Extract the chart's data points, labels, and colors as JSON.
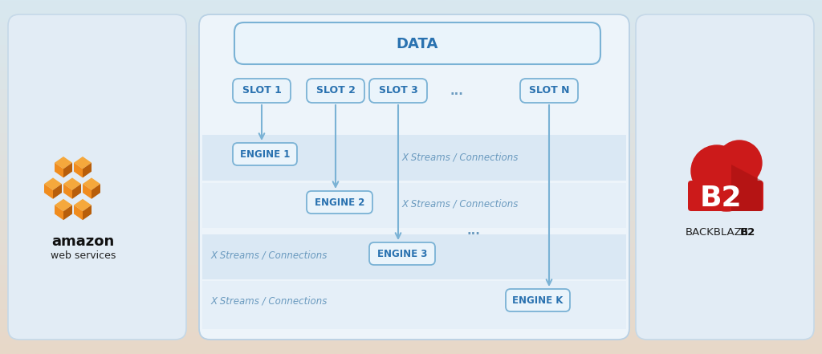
{
  "bg_gradient_top": "#d8e8f0",
  "bg_gradient_bottom": "#e8d8c8",
  "left_panel_color": "#e2ecf5",
  "left_panel_border": "#c5d8e8",
  "right_panel_color": "#e2ecf5",
  "right_panel_border": "#c5d8e8",
  "center_panel_color": "#edf4fa",
  "center_panel_border": "#b8d0e4",
  "stripe_color": "#c8ddf0",
  "stripe_alpha": 0.5,
  "box_bg": "#eaf4fb",
  "box_border": "#7ab2d5",
  "box_text": "#2a72b0",
  "arrow_color": "#7ab2d5",
  "label_color": "#6a9abf",
  "dots_color": "#6a9abf",
  "data_label": "DATA",
  "slots": [
    "SLOT 1",
    "SLOT 2",
    "SLOT 3",
    "...",
    "SLOT N"
  ],
  "engines": [
    "ENGINE 1",
    "ENGINE 2",
    "ENGINE 3",
    "ENGINE K"
  ],
  "streams_label": "X Streams / Connections",
  "aws_orange_front": "#f08c1e",
  "aws_orange_top": "#f5a83c",
  "aws_orange_side": "#b85e0a",
  "cloud_red": "#cc1a1a",
  "cloud_red_dark": "#a01010",
  "backblaze_label": "BACKBLAZE",
  "b2_label": "B2"
}
